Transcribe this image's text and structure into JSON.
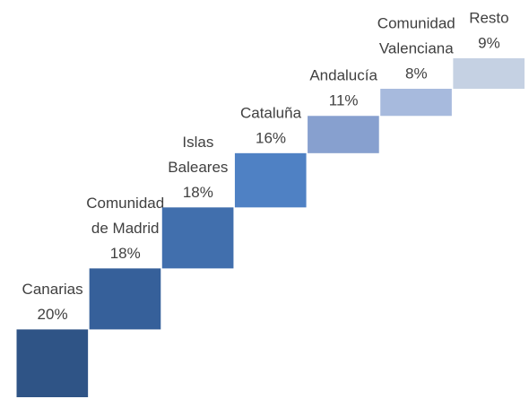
{
  "chart_data": {
    "type": "waterfall",
    "categories": [
      [
        "Canarias"
      ],
      [
        "Comunidad",
        "de Madrid"
      ],
      [
        "Islas",
        "Baleares"
      ],
      [
        "Cataluña"
      ],
      [
        "Andalucía"
      ],
      [
        "Comunidad",
        "Valenciana"
      ],
      [
        "Resto"
      ]
    ],
    "values": [
      20,
      18,
      18,
      16,
      11,
      8,
      9
    ],
    "value_labels": [
      "20%",
      "18%",
      "18%",
      "16%",
      "11%",
      "8%",
      "9%"
    ],
    "colors": [
      "#2f5486",
      "#36609a",
      "#416fad",
      "#4f81c4",
      "#87a0cf",
      "#a7badd",
      "#c5d1e3"
    ]
  }
}
